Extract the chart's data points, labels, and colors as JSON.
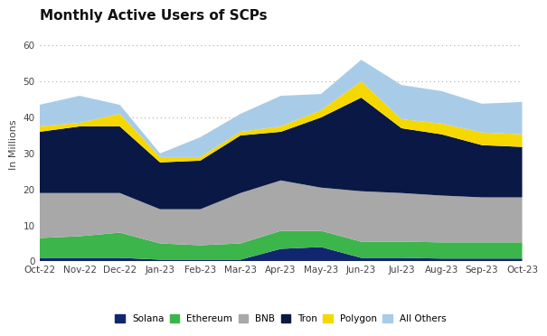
{
  "title": "Monthly Active Users of SCPs",
  "ylabel": "In Millions",
  "xlabels": [
    "Oct-22",
    "Nov-22",
    "Dec-22",
    "Jan-23",
    "Feb-23",
    "Mar-23",
    "Apr-23",
    "May-23",
    "Jun-23",
    "Jul-23",
    "Aug-23",
    "Sep-23",
    "Oct-23"
  ],
  "ylim": [
    0,
    65
  ],
  "yticks": [
    0,
    10,
    20,
    30,
    40,
    50,
    60
  ],
  "series": {
    "Solana": [
      1.0,
      1.0,
      1.0,
      0.5,
      0.5,
      0.5,
      3.5,
      4.0,
      1.0,
      1.0,
      0.8,
      0.8,
      0.8
    ],
    "Ethereum": [
      5.5,
      6.0,
      7.0,
      4.5,
      4.0,
      4.5,
      5.0,
      4.5,
      4.5,
      4.5,
      4.5,
      4.5,
      4.5
    ],
    "BNB": [
      12.5,
      12.0,
      11.0,
      9.5,
      10.0,
      14.0,
      14.0,
      12.0,
      14.0,
      13.5,
      13.0,
      12.5,
      12.5
    ],
    "Tron": [
      17.0,
      18.5,
      18.5,
      13.0,
      13.5,
      16.0,
      13.5,
      19.5,
      26.0,
      18.0,
      17.0,
      14.5,
      14.0
    ],
    "Polygon": [
      1.5,
      1.0,
      3.5,
      1.5,
      1.0,
      1.0,
      1.5,
      2.0,
      4.5,
      2.5,
      3.0,
      3.5,
      3.5
    ],
    "All Others": [
      6.0,
      7.5,
      2.5,
      1.0,
      5.5,
      5.0,
      8.5,
      4.5,
      6.0,
      9.5,
      9.0,
      8.0,
      9.0
    ]
  },
  "colors": {
    "Solana": "#122670",
    "Ethereum": "#3cb54a",
    "BNB": "#a8a8a8",
    "Tron": "#0a1845",
    "Polygon": "#f5d800",
    "All Others": "#a8cce8"
  },
  "legend_order": [
    "Solana",
    "Ethereum",
    "BNB",
    "Tron",
    "Polygon",
    "All Others"
  ],
  "background_color": "#ffffff",
  "grid_color": "#aaaaaa",
  "title_fontsize": 11,
  "axis_fontsize": 8,
  "tick_fontsize": 7.5
}
